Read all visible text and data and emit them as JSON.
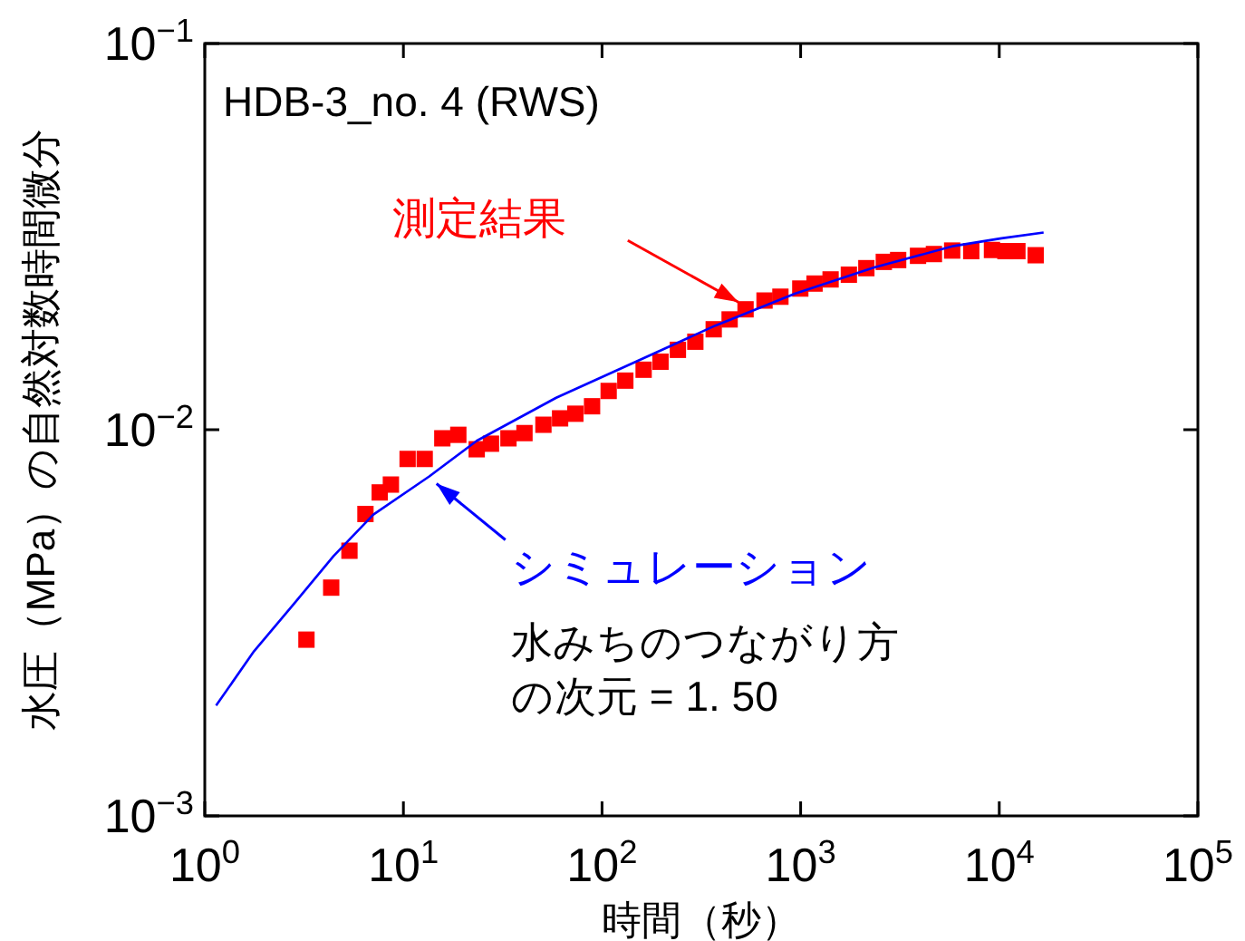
{
  "chart_data": {
    "type": "scatter",
    "xlabel": "時間（秒）",
    "ylabel": "水圧（MPa）の自然対数時間微分",
    "log": "xy",
    "grid": false,
    "xlim": [
      1,
      100000
    ],
    "ylim": [
      0.001,
      0.1
    ],
    "xticks": [
      {
        "value": 1,
        "label": "10$^{0}$"
      },
      {
        "value": 10,
        "label": "10$^{1}$"
      },
      {
        "value": 100,
        "label": "10$^{2}$"
      },
      {
        "value": 1000,
        "label": "10$^{3}$"
      },
      {
        "value": 10000,
        "label": "10$^{4}$"
      },
      {
        "value": 100000,
        "label": "10$^{5}$"
      }
    ],
    "yticks": [
      {
        "value": 0.001,
        "label": "10$^{−3}$"
      },
      {
        "value": 0.01,
        "label": "10$^{−2}$"
      },
      {
        "value": 0.1,
        "label": "10$^{−1}$"
      }
    ],
    "series": [
      {
        "name": "測定結果",
        "marker": "square",
        "color": "#ff0000",
        "x": [
          3.25,
          4.33,
          5.35,
          6.44,
          7.6,
          8.65,
          10.5,
          12.8,
          15.7,
          18.9,
          23.4,
          27.6,
          33.8,
          40.7,
          50.7,
          61.5,
          73.4,
          89.1,
          108,
          131,
          162,
          197,
          241,
          295,
          365,
          439,
          528,
          658,
          791,
          996,
          1175,
          1415,
          1749,
          2142,
          2623,
          3097,
          3899,
          4688,
          5793,
          7227,
          9190,
          10740,
          12340,
          15250
        ],
        "values": [
          0.00286,
          0.0039,
          0.00486,
          0.00605,
          0.00688,
          0.00721,
          0.0084,
          0.0084,
          0.0095,
          0.0097,
          0.0089,
          0.0092,
          0.0095,
          0.0098,
          0.0103,
          0.0107,
          0.011,
          0.0115,
          0.0126,
          0.0134,
          0.0143,
          0.015,
          0.0161,
          0.0169,
          0.0182,
          0.0193,
          0.0205,
          0.0216,
          0.0221,
          0.0232,
          0.0239,
          0.0245,
          0.0252,
          0.0262,
          0.0272,
          0.0275,
          0.0282,
          0.0285,
          0.0291,
          0.029,
          0.0292,
          0.029,
          0.029,
          0.0283
        ]
      },
      {
        "name": "シミュレーション",
        "type": "line",
        "marker": "none",
        "line_style": "solid",
        "color": "#0000ff",
        "x": [
          1.14,
          1.77,
          2.81,
          4.45,
          7.06,
          13.5,
          23.4,
          58.8,
          148,
          372,
          934,
          2347,
          5902,
          10260,
          16720
        ],
        "values": [
          0.00193,
          0.00267,
          0.00354,
          0.00471,
          0.00603,
          0.00757,
          0.00936,
          0.0121,
          0.015,
          0.0186,
          0.0225,
          0.0263,
          0.0299,
          0.0313,
          0.0324
        ]
      }
    ],
    "annotations": [
      "HDB-3_no. 4 (RWS)",
      "水みちのつながり方",
      "の次元 = 1. 50"
    ]
  }
}
